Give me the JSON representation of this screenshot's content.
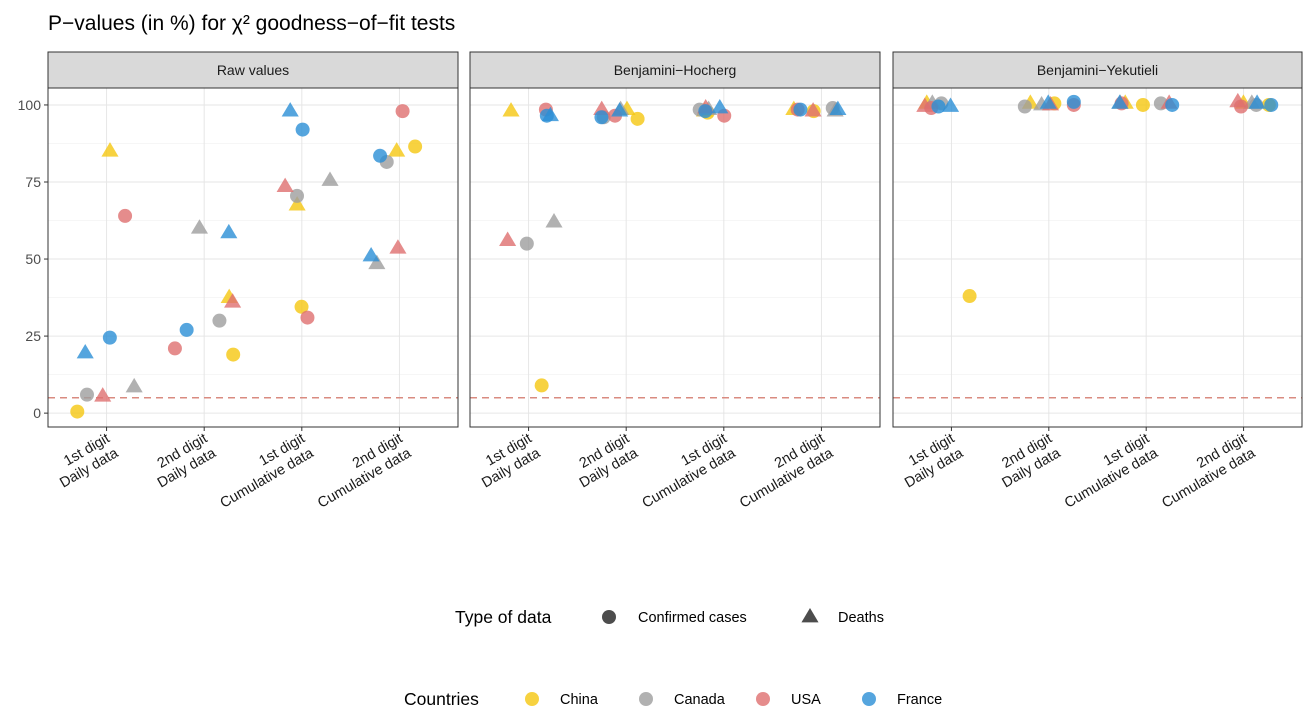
{
  "title": "P−values (in %) for χ² goodness−of−fit tests",
  "ylim": [
    -4.5,
    105.5
  ],
  "yticks": [
    0,
    25,
    50,
    75,
    100
  ],
  "y_minor_ticks": [
    12.5,
    37.5,
    62.5,
    87.5
  ],
  "grid": true,
  "reference_line": {
    "value": 5,
    "color": "#d98b80"
  },
  "legend_shape": {
    "title": "Type of data",
    "entries": [
      "Confirmed cases",
      "Deaths"
    ]
  },
  "legend_color": {
    "title": "Countries"
  },
  "chart_data": [
    {
      "type": "scatter",
      "title": "Raw values",
      "categories": [
        [
          "1st digit",
          "Daily data"
        ],
        [
          "2nd digit",
          "Daily data"
        ],
        [
          "1st digit",
          "Cumulative data"
        ],
        [
          "2nd digit",
          "Cumulative data"
        ]
      ],
      "series": [
        {
          "name": "China",
          "color": "#f5c710",
          "confirmed": [
            0.5,
            19,
            34.5,
            86.5
          ],
          "deaths": [
            85,
            37.5,
            67.5,
            85
          ]
        },
        {
          "name": "Canada",
          "color": "#9e9e9e",
          "confirmed": [
            6,
            30,
            70.5,
            81.5
          ],
          "deaths": [
            8.5,
            60,
            75.5,
            48.5
          ]
        },
        {
          "name": "USA",
          "color": "#df6f6f",
          "confirmed": [
            64,
            21,
            31,
            98
          ],
          "deaths": [
            5.5,
            36,
            73.5,
            53.5
          ]
        },
        {
          "name": "France",
          "color": "#2b8fd6",
          "confirmed": [
            24.5,
            27,
            92,
            83.5
          ],
          "deaths": [
            19.5,
            58.5,
            98,
            51
          ]
        }
      ]
    },
    {
      "type": "scatter",
      "title": "Benjamini−Hocherg",
      "categories": [
        [
          "1st digit",
          "Daily data"
        ],
        [
          "2nd digit",
          "Daily data"
        ],
        [
          "1st digit",
          "Cumulative data"
        ],
        [
          "2nd digit",
          "Cumulative data"
        ]
      ],
      "series": [
        {
          "name": "China",
          "color": "#f5c710",
          "confirmed": [
            9,
            95.5,
            97.5,
            98
          ],
          "deaths": [
            98,
            98.5,
            98,
            98.5
          ]
        },
        {
          "name": "Canada",
          "color": "#9e9e9e",
          "confirmed": [
            55,
            96,
            98.5,
            99
          ],
          "deaths": [
            62,
            98.5,
            98.5,
            98
          ]
        },
        {
          "name": "USA",
          "color": "#df6f6f",
          "confirmed": [
            98.5,
            96.5,
            96.5,
            98.5
          ],
          "deaths": [
            56,
            98.5,
            99,
            98
          ]
        },
        {
          "name": "France",
          "color": "#2b8fd6",
          "confirmed": [
            96.5,
            96,
            98,
            98.5
          ],
          "deaths": [
            96.5,
            98,
            99,
            98.5
          ]
        }
      ]
    },
    {
      "type": "scatter",
      "title": "Benjamini−Yekutieli",
      "categories": [
        [
          "1st digit",
          "Daily data"
        ],
        [
          "2nd digit",
          "Daily data"
        ],
        [
          "1st digit",
          "Cumulative data"
        ],
        [
          "2nd digit",
          "Cumulative data"
        ]
      ],
      "series": [
        {
          "name": "China",
          "color": "#f5c710",
          "confirmed": [
            38,
            100.5,
            100,
            100
          ],
          "deaths": [
            100.5,
            100.5,
            100.5,
            100.5
          ]
        },
        {
          "name": "Canada",
          "color": "#9e9e9e",
          "confirmed": [
            100.5,
            99.5,
            100.5,
            100
          ],
          "deaths": [
            100.5,
            100,
            100.5,
            100.5
          ]
        },
        {
          "name": "USA",
          "color": "#df6f6f",
          "confirmed": [
            99,
            100,
            100.5,
            99.5
          ],
          "deaths": [
            99.5,
            100,
            100.5,
            101
          ]
        },
        {
          "name": "France",
          "color": "#2b8fd6",
          "confirmed": [
            99.5,
            101,
            100,
            100
          ],
          "deaths": [
            99.5,
            100.5,
            100.5,
            100.5
          ]
        }
      ]
    }
  ]
}
